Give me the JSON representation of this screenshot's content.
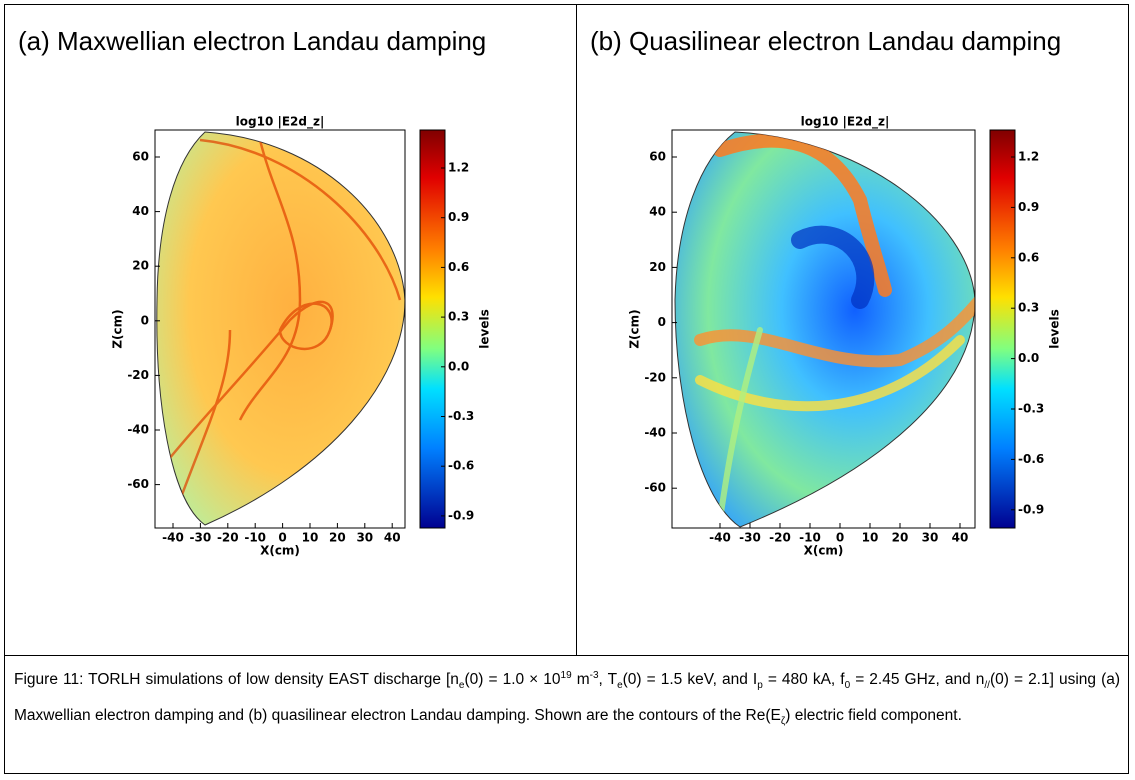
{
  "panels": [
    {
      "title": "(a) Maxwellian electron Landau damping",
      "plot_title": "log10 |E2d_z|",
      "xlabel": "X(cm)",
      "ylabel": "Z(cm)",
      "xticks": [
        "-40",
        "-30",
        "-20",
        "-10",
        "0",
        "10",
        "20",
        "30",
        "40"
      ],
      "yticks": [
        "60",
        "40",
        "20",
        "0",
        "-20",
        "-40",
        "-60"
      ],
      "colorbar_label": "levels",
      "colorbar_ticks": [
        "1.2",
        "0.9",
        "0.6",
        "0.3",
        "0.0",
        "-0.3",
        "-0.6",
        "-0.9"
      ]
    },
    {
      "title": "(b) Quasilinear electron Landau damping",
      "plot_title": "log10 |E2d_z|",
      "xlabel": "X(cm)",
      "ylabel": "Z(cm)",
      "xticks": [
        "-40",
        "-30",
        "-20",
        "-10",
        "0",
        "10",
        "20",
        "30",
        "40"
      ],
      "yticks": [
        "60",
        "40",
        "20",
        "0",
        "-20",
        "-40",
        "-60"
      ],
      "colorbar_label": "levels",
      "colorbar_ticks": [
        "1.2",
        "0.9",
        "0.6",
        "0.3",
        "0.0",
        "-0.3",
        "-0.6",
        "-0.9"
      ]
    }
  ],
  "caption": [
    "Figure 11:    TORLH simulations of low density EAST discharge [n",
    {
      "sub": "e"
    },
    "(0) = 1.0 × 10",
    {
      "sup": "19"
    },
    " m",
    {
      "sup": "-3"
    },
    ", T",
    {
      "sub": "e"
    },
    "(0) = 1.5 keV, and I",
    {
      "sub": "p"
    },
    " = 480 kA, f",
    {
      "sub": "0"
    },
    " = 2.45 GHz, and n",
    {
      "sub": "//"
    },
    "(0) = 2.1] using (a) Maxwellian electron damping and (b) quasilinear electron Landau damping. Shown are the contours of the Re(E",
    {
      "sub": "ζ"
    },
    ") electric field component."
  ]
}
